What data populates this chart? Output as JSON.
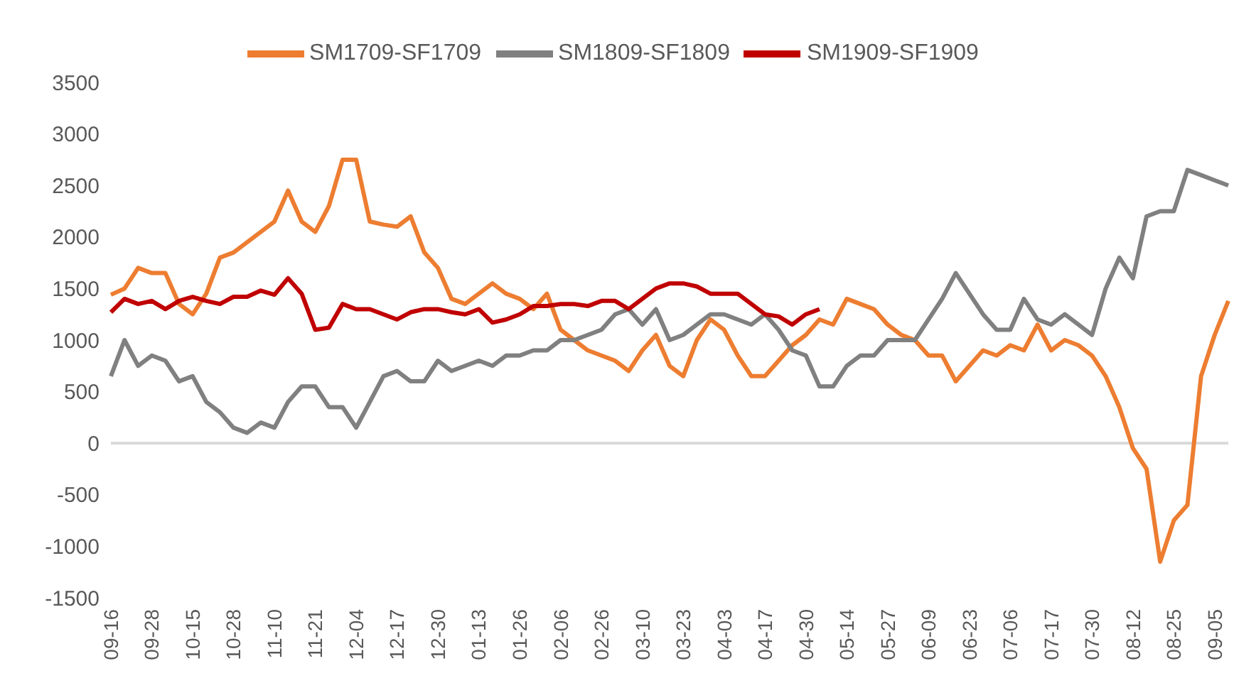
{
  "chart_data": {
    "type": "line",
    "categories": [
      "09-16",
      null,
      null,
      "09-28",
      null,
      null,
      "10-15",
      null,
      null,
      "10-28",
      null,
      null,
      "11-10",
      null,
      null,
      "11-21",
      null,
      null,
      "12-04",
      null,
      null,
      "12-17",
      null,
      null,
      "12-30",
      null,
      null,
      "01-13",
      null,
      null,
      "01-26",
      null,
      null,
      "02-06",
      null,
      null,
      "02-26",
      null,
      null,
      "03-10",
      null,
      null,
      "03-23",
      null,
      null,
      "04-03",
      null,
      null,
      "04-17",
      null,
      null,
      "04-30",
      null,
      null,
      "05-14",
      null,
      null,
      "05-27",
      null,
      null,
      "06-09",
      null,
      null,
      "06-23",
      null,
      null,
      "07-06",
      null,
      null,
      "07-17",
      null,
      null,
      "07-30",
      null,
      null,
      "08-12",
      null,
      null,
      "08-25",
      null,
      null,
      "09-05",
      null
    ],
    "series": [
      {
        "name": "SM1709-SF1709",
        "color": "#ed7d31",
        "values": [
          1440,
          1500,
          1700,
          1650,
          1650,
          1350,
          1250,
          1450,
          1800,
          1850,
          1950,
          2050,
          2150,
          2450,
          2150,
          2050,
          2300,
          2750,
          2750,
          2150,
          2120,
          2100,
          2200,
          1850,
          1700,
          1400,
          1350,
          1450,
          1550,
          1450,
          1400,
          1300,
          1450,
          1100,
          1000,
          900,
          850,
          800,
          700,
          900,
          1050,
          750,
          650,
          1000,
          1200,
          1100,
          850,
          650,
          650,
          800,
          950,
          1050,
          1200,
          1150,
          1400,
          1350,
          1300,
          1150,
          1050,
          1000,
          850,
          850,
          600,
          750,
          900,
          850,
          950,
          900,
          1150,
          900,
          1000,
          950,
          850,
          650,
          350,
          -50,
          -250,
          -1150,
          -750,
          -600,
          650,
          1050,
          1380
        ]
      },
      {
        "name": "SM1809-SF1809",
        "color": "#808080",
        "values": [
          650,
          1000,
          750,
          850,
          800,
          600,
          650,
          400,
          300,
          150,
          100,
          200,
          150,
          400,
          550,
          550,
          350,
          350,
          150,
          400,
          650,
          700,
          600,
          600,
          800,
          700,
          750,
          800,
          750,
          850,
          850,
          900,
          900,
          1000,
          1000,
          1050,
          1100,
          1250,
          1300,
          1150,
          1300,
          1000,
          1050,
          1150,
          1250,
          1250,
          1200,
          1150,
          1250,
          1100,
          900,
          850,
          550,
          550,
          750,
          850,
          850,
          1000,
          1000,
          1000,
          1200,
          1400,
          1650,
          1450,
          1250,
          1100,
          1100,
          1400,
          1200,
          1150,
          1250,
          1150,
          1050,
          1500,
          1800,
          1600,
          2200,
          2250,
          2250,
          2650,
          2600,
          2550,
          2500
        ]
      },
      {
        "name": "SM1909-SF1909",
        "color": "#c00000",
        "values": [
          1270,
          1400,
          1350,
          1380,
          1300,
          1380,
          1420,
          1380,
          1350,
          1420,
          1420,
          1480,
          1440,
          1600,
          1450,
          1100,
          1120,
          1350,
          1300,
          1300,
          1250,
          1200,
          1270,
          1300,
          1300,
          1270,
          1250,
          1300,
          1170,
          1200,
          1250,
          1330,
          1330,
          1350,
          1350,
          1330,
          1380,
          1380,
          1300,
          1400,
          1500,
          1550,
          1550,
          1520,
          1450,
          1450,
          1450,
          1350,
          1250,
          1230,
          1150,
          1250,
          1300,
          null,
          null,
          null,
          null,
          null,
          null,
          null,
          null,
          null,
          null,
          null,
          null,
          null,
          null,
          null,
          null,
          null,
          null,
          null,
          null,
          null,
          null,
          null,
          null,
          null,
          null,
          null,
          null,
          null,
          null
        ]
      }
    ],
    "ylim": [
      -1500,
      3500
    ],
    "yticks": [
      -1500,
      -1000,
      -500,
      0,
      500,
      1000,
      1500,
      2000,
      2500,
      3000,
      3500
    ],
    "ref_lines": [
      {
        "axis": "y",
        "value": 0,
        "color": "#d9d9d9"
      }
    ],
    "grid": false,
    "legend": "top",
    "marker": "none",
    "line_style": "solid"
  }
}
